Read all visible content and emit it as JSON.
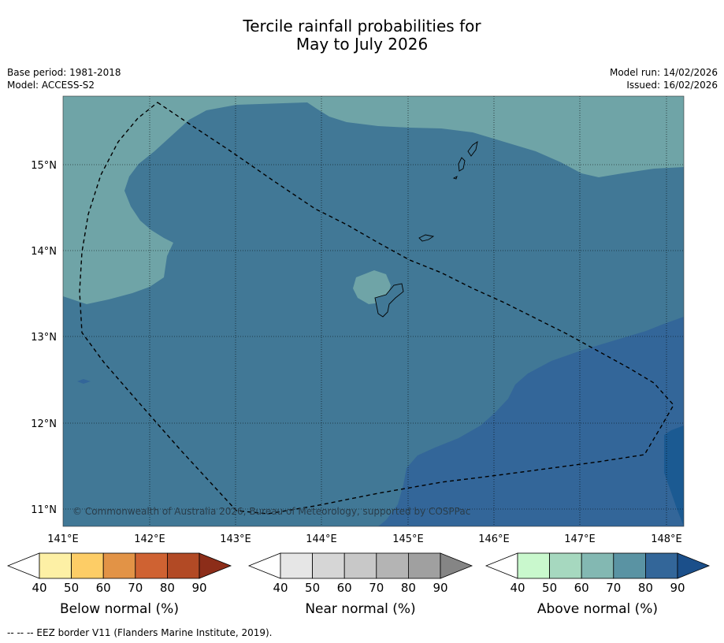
{
  "title": {
    "line1": "Tercile rainfall probabilities for",
    "line2": "May to July 2026"
  },
  "meta": {
    "base_period": "Base period: 1981-2018",
    "model": "Model: ACCESS-S2",
    "model_run": "Model run: 14/02/2026",
    "issued": "Issued: 16/02/2026"
  },
  "map": {
    "lon_labels": [
      "141°E",
      "142°E",
      "143°E",
      "144°E",
      "145°E",
      "146°E",
      "147°E",
      "148°E"
    ],
    "lat_labels": [
      "15°N",
      "14°N",
      "13°N",
      "12°N",
      "11°N"
    ],
    "copyright": "© Commonwealth of Australia 2026, Bureau of Meteorology, supported by COSPPac",
    "colors": {
      "above_60_70": "#6fa4a7",
      "above_70_80": "#417896",
      "above_80_90": "#336699",
      "above_90": "#1b5a92"
    }
  },
  "colorbars": [
    {
      "label": "Below normal (%)",
      "ticks": [
        "40",
        "50",
        "60",
        "70",
        "80",
        "90"
      ],
      "colors": [
        "#ffffff",
        "#fdf0a5",
        "#fdcd66",
        "#e29346",
        "#cf6232",
        "#b24a25",
        "#8c2d19"
      ]
    },
    {
      "label": "Near normal (%)",
      "ticks": [
        "40",
        "50",
        "60",
        "70",
        "80",
        "90"
      ],
      "colors": [
        "#ffffff",
        "#e6e6e6",
        "#d6d6d6",
        "#c8c8c8",
        "#b4b4b4",
        "#a0a0a0",
        "#858585"
      ]
    },
    {
      "label": "Above normal (%)",
      "ticks": [
        "40",
        "50",
        "60",
        "70",
        "80",
        "90"
      ],
      "colors": [
        "#ffffff",
        "#c9f8cd",
        "#a6d8bf",
        "#83b8b2",
        "#5a93a3",
        "#336699",
        "#1b4f8a"
      ]
    }
  ],
  "footnote": "--  --  -- EEZ border V11 (Flanders Marine Institute, 2019)."
}
